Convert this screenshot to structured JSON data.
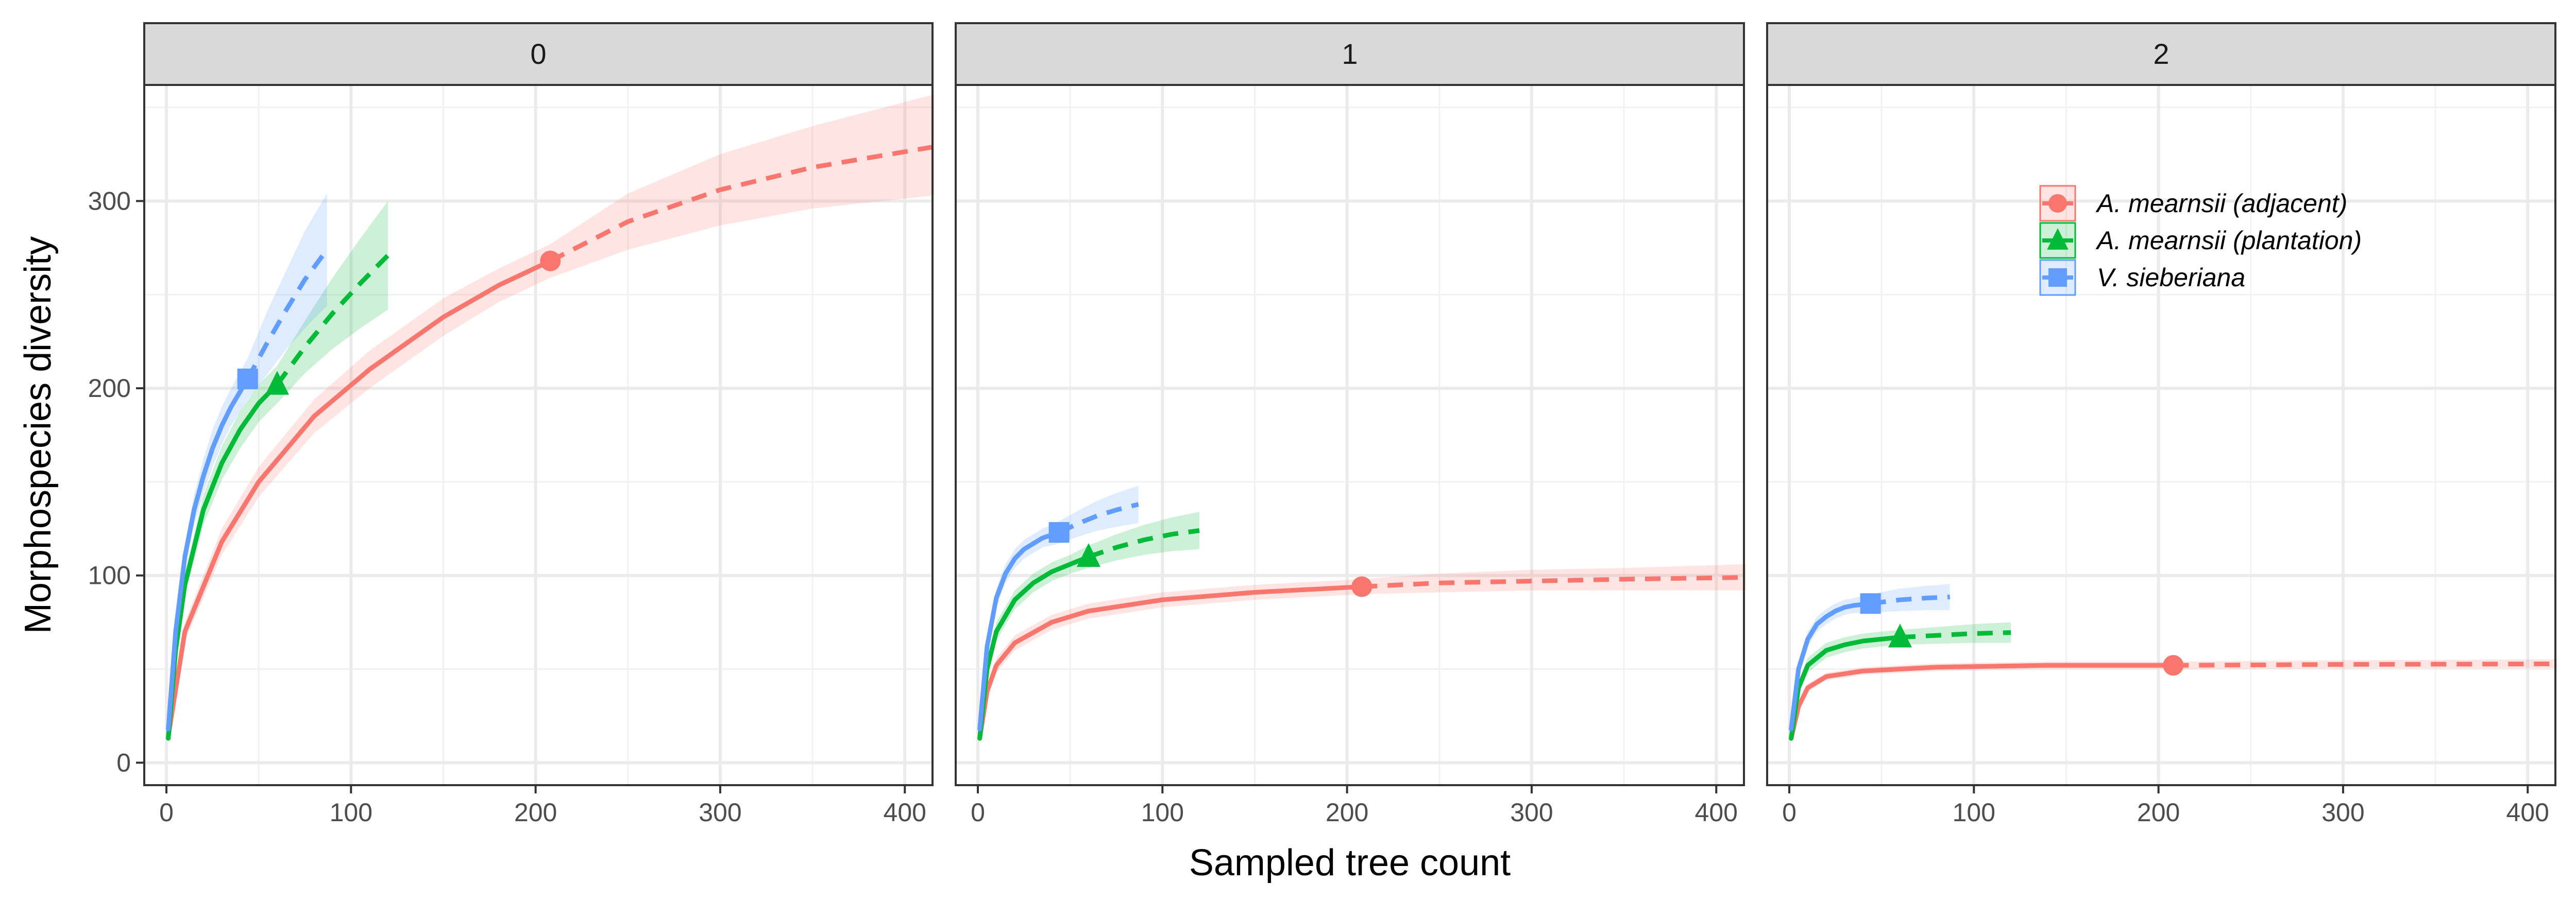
{
  "chart_data": {
    "type": "line",
    "xlabel": "Sampled tree count",
    "ylabel": "Morphospecies diversity",
    "xlim": [
      0,
      415
    ],
    "ylim": [
      0,
      350
    ],
    "x_ticks": [
      0,
      100,
      200,
      300,
      400
    ],
    "y_ticks": [
      0,
      100,
      200,
      300
    ],
    "grid": true,
    "legend_position": "top-right",
    "line_styles": {
      "rarefaction": "solid",
      "extrapolation": "dashed"
    },
    "legend": [
      {
        "label": "A. mearnsii (adjacent)",
        "color": "#F8766D",
        "marker": "circle"
      },
      {
        "label": "A. mearnsii (plantation)",
        "color": "#00BA38",
        "marker": "triangle"
      },
      {
        "label": "V. sieberiana",
        "color": "#619CFF",
        "marker": "square"
      }
    ],
    "panels": [
      {
        "label": "0",
        "series": [
          {
            "name": "A. mearnsii (adjacent)",
            "color": "#F8766D",
            "marker": "circle",
            "observed": {
              "x": 208,
              "y": 268
            },
            "rarefaction": {
              "x": [
                1,
                10,
                30,
                50,
                80,
                110,
                150,
                180,
                208
              ],
              "y": [
                14,
                70,
                118,
                150,
                185,
                210,
                238,
                255,
                268
              ]
            },
            "rarefaction_ci_low": [
              12,
              65,
              111,
              142,
              176,
              200,
              228,
              246,
              259
            ],
            "rarefaction_ci_high": [
              16,
              75,
              125,
              158,
              194,
              220,
              248,
              264,
              277
            ],
            "extrapolation": {
              "x": [
                208,
                250,
                300,
                350,
                416
              ],
              "y": [
                268,
                289,
                306,
                318,
                329
              ]
            },
            "extrapolation_ci_low": [
              259,
              274,
              287,
              296,
              303
            ],
            "extrapolation_ci_high": [
              277,
              304,
              325,
              340,
              357
            ]
          },
          {
            "name": "A. mearnsii (plantation)",
            "color": "#00BA38",
            "marker": "triangle",
            "observed": {
              "x": 60,
              "y": 202
            },
            "rarefaction": {
              "x": [
                1,
                5,
                10,
                20,
                30,
                40,
                50,
                60
              ],
              "y": [
                13,
                60,
                95,
                135,
                160,
                178,
                192,
                202
              ]
            },
            "rarefaction_ci_low": [
              11,
              56,
              89,
              127,
              151,
              168,
              182,
              192
            ],
            "rarefaction_ci_high": [
              15,
              64,
              101,
              143,
              169,
              188,
              202,
              212
            ],
            "extrapolation": {
              "x": [
                60,
                75,
                90,
                105,
                120
              ],
              "y": [
                202,
                222,
                240,
                256,
                271
              ]
            },
            "extrapolation_ci_low": [
              192,
              208,
              221,
              232,
              242
            ],
            "extrapolation_ci_high": [
              212,
              236,
              259,
              280,
              300
            ]
          },
          {
            "name": "V. sieberiana",
            "color": "#619CFF",
            "marker": "square",
            "observed": {
              "x": 44,
              "y": 205
            },
            "rarefaction": {
              "x": [
                1,
                5,
                10,
                15,
                20,
                25,
                30,
                35,
                44
              ],
              "y": [
                18,
                70,
                110,
                135,
                153,
                168,
                180,
                190,
                205
              ]
            },
            "rarefaction_ci_low": [
              15,
              65,
              103,
              127,
              144,
              158,
              170,
              180,
              194
            ],
            "rarefaction_ci_high": [
              21,
              75,
              117,
              143,
              162,
              178,
              190,
              200,
              216
            ],
            "extrapolation": {
              "x": [
                44,
                55,
                65,
                75,
                87
              ],
              "y": [
                205,
                225,
                242,
                258,
                274
              ]
            },
            "extrapolation_ci_low": [
              194,
              208,
              221,
              232,
              244
            ],
            "extrapolation_ci_high": [
              216,
              242,
              263,
              284,
              304
            ]
          }
        ]
      },
      {
        "label": "1",
        "series": [
          {
            "name": "A. mearnsii (adjacent)",
            "color": "#F8766D",
            "marker": "circle",
            "observed": {
              "x": 208,
              "y": 94
            },
            "rarefaction": {
              "x": [
                1,
                5,
                10,
                20,
                40,
                60,
                100,
                150,
                208
              ],
              "y": [
                13,
                38,
                52,
                64,
                75,
                81,
                87,
                91,
                94
              ]
            },
            "rarefaction_ci_low": [
              11,
              35,
              48,
              60,
              71,
              77,
              83,
              87,
              90
            ],
            "rarefaction_ci_high": [
              15,
              41,
              56,
              68,
              79,
              85,
              91,
              95,
              98
            ],
            "extrapolation": {
              "x": [
                208,
                250,
                300,
                350,
                416
              ],
              "y": [
                94,
                96,
                97,
                98,
                99
              ]
            },
            "extrapolation_ci_low": [
              90,
              91,
              92,
              92,
              92
            ],
            "extrapolation_ci_high": [
              98,
              101,
              103,
              104,
              106
            ]
          },
          {
            "name": "A. mearnsii (plantation)",
            "color": "#00BA38",
            "marker": "triangle",
            "observed": {
              "x": 60,
              "y": 110
            },
            "rarefaction": {
              "x": [
                1,
                5,
                10,
                20,
                30,
                40,
                50,
                60
              ],
              "y": [
                13,
                50,
                70,
                87,
                96,
                102,
                106,
                110
              ]
            },
            "rarefaction_ci_low": [
              11,
              46,
              65,
              82,
              91,
              97,
              101,
              104
            ],
            "rarefaction_ci_high": [
              15,
              54,
              75,
              92,
              101,
              107,
              111,
              116
            ],
            "extrapolation": {
              "x": [
                60,
                75,
                90,
                105,
                120
              ],
              "y": [
                110,
                115,
                119,
                122,
                124
              ]
            },
            "extrapolation_ci_low": [
              104,
              108,
              111,
              113,
              114
            ],
            "extrapolation_ci_high": [
              116,
              122,
              127,
              131,
              134
            ]
          },
          {
            "name": "V. sieberiana",
            "color": "#619CFF",
            "marker": "square",
            "observed": {
              "x": 44,
              "y": 123
            },
            "rarefaction": {
              "x": [
                1,
                5,
                10,
                15,
                20,
                25,
                30,
                35,
                44
              ],
              "y": [
                18,
                62,
                88,
                101,
                109,
                114,
                117,
                120,
                123
              ]
            },
            "rarefaction_ci_low": [
              15,
              58,
              83,
              96,
              104,
              109,
              112,
              115,
              117
            ],
            "rarefaction_ci_high": [
              21,
              66,
              93,
              106,
              114,
              119,
              122,
              125,
              129
            ],
            "extrapolation": {
              "x": [
                44,
                55,
                65,
                75,
                87
              ],
              "y": [
                123,
                128,
                132,
                135,
                138
              ]
            },
            "extrapolation_ci_low": [
              117,
              121,
              124,
              126,
              128
            ],
            "extrapolation_ci_high": [
              129,
              135,
              140,
              144,
              148
            ]
          }
        ]
      },
      {
        "label": "2",
        "series": [
          {
            "name": "A. mearnsii (adjacent)",
            "color": "#F8766D",
            "marker": "circle",
            "observed": {
              "x": 208,
              "y": 52
            },
            "rarefaction": {
              "x": [
                1,
                5,
                10,
                20,
                40,
                80,
                140,
                208
              ],
              "y": [
                13,
                30,
                40,
                46,
                49,
                51,
                52,
                52
              ]
            },
            "rarefaction_ci_low": [
              11,
              28,
              38,
              44,
              47,
              49,
              50,
              50
            ],
            "rarefaction_ci_high": [
              15,
              32,
              42,
              48,
              51,
              53,
              54,
              54
            ],
            "extrapolation": {
              "x": [
                208,
                300,
                416
              ],
              "y": [
                52,
                52.5,
                52.8
              ]
            },
            "extrapolation_ci_low": [
              50,
              50.3,
              50.4
            ],
            "extrapolation_ci_high": [
              54,
              54.7,
              55.2
            ]
          },
          {
            "name": "A. mearnsii (plantation)",
            "color": "#00BA38",
            "marker": "triangle",
            "observed": {
              "x": 60,
              "y": 67
            },
            "rarefaction": {
              "x": [
                1,
                5,
                10,
                20,
                30,
                40,
                50,
                60
              ],
              "y": [
                13,
                40,
                52,
                60,
                63,
                65,
                66,
                67
              ]
            },
            "rarefaction_ci_low": [
              11,
              37,
              48,
              56,
              59,
              61,
              62,
              63
            ],
            "rarefaction_ci_high": [
              15,
              43,
              56,
              64,
              67,
              69,
              70,
              71
            ],
            "extrapolation": {
              "x": [
                60,
                80,
                100,
                120
              ],
              "y": [
                67,
                68,
                69,
                69.5
              ]
            },
            "extrapolation_ci_low": [
              63,
              63.5,
              64,
              64
            ],
            "extrapolation_ci_high": [
              71,
              72.5,
              74,
              75
            ]
          },
          {
            "name": "V. sieberiana",
            "color": "#619CFF",
            "marker": "square",
            "observed": {
              "x": 44,
              "y": 85
            },
            "rarefaction": {
              "x": [
                1,
                5,
                10,
                15,
                20,
                25,
                30,
                35,
                44
              ],
              "y": [
                18,
                50,
                66,
                74,
                78,
                81,
                83,
                84,
                85
              ]
            },
            "rarefaction_ci_low": [
              15,
              46,
              62,
              70,
              74,
              77,
              79,
              80,
              80
            ],
            "rarefaction_ci_high": [
              21,
              54,
              70,
              78,
              82,
              85,
              87,
              88,
              90
            ],
            "extrapolation": {
              "x": [
                44,
                60,
                75,
                87
              ],
              "y": [
                85,
                87,
                88,
                88.5
              ]
            },
            "extrapolation_ci_low": [
              80,
              81,
              81.5,
              81.5
            ],
            "extrapolation_ci_high": [
              90,
              93,
              94.5,
              95.5
            ]
          }
        ]
      }
    ]
  }
}
